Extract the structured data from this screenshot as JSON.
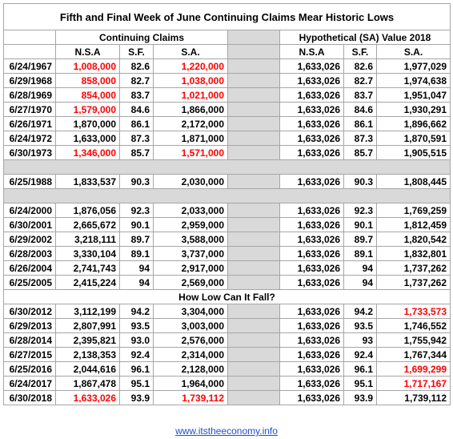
{
  "table": {
    "title": "Fifth and Final Week of June Continuing Claims Mear Historic Lows",
    "group_headers": [
      "Continuing Claims",
      "Hypothetical (SA) Value 2018"
    ],
    "column_headers": [
      "N.S.A",
      "S.F.",
      "S.A.",
      "N.S.A",
      "S.F.",
      "S.A."
    ],
    "groups": [
      {
        "rows": [
          [
            "6/24/1967",
            {
              "text": "1,008,000",
              "color": "#ff0000"
            },
            "82.6",
            {
              "text": "1,220,000",
              "color": "#ff0000"
            },
            "1,633,026",
            "82.6",
            "1,977,029"
          ],
          [
            "6/29/1968",
            {
              "text": "858,000",
              "color": "#ff0000"
            },
            "82.7",
            {
              "text": "1,038,000",
              "color": "#ff0000"
            },
            "1,633,026",
            "82.7",
            "1,974,638"
          ],
          [
            "6/28/1969",
            {
              "text": "854,000",
              "color": "#ff0000"
            },
            "83.7",
            {
              "text": "1,021,000",
              "color": "#ff0000"
            },
            "1,633,026",
            "83.7",
            "1,951,047"
          ],
          [
            "6/27/1970",
            {
              "text": "1,579,000",
              "color": "#ff0000"
            },
            "84.6",
            "1,866,000",
            "1,633,026",
            "84.6",
            "1,930,291"
          ],
          [
            "6/26/1971",
            "1,870,000",
            "86.1",
            "2,172,000",
            "1,633,026",
            "86.1",
            "1,896,662"
          ],
          [
            "6/24/1972",
            "1,633,000",
            "87.3",
            "1,871,000",
            "1,633,026",
            "87.3",
            "1,870,591"
          ],
          [
            "6/30/1973",
            {
              "text": "1,346,000",
              "color": "#ff0000"
            },
            "85.7",
            {
              "text": "1,571,000",
              "color": "#ff0000"
            },
            "1,633,026",
            "85.7",
            "1,905,515"
          ]
        ]
      },
      {
        "rows": [
          [
            "6/25/1988",
            "1,833,537",
            "90.3",
            "2,030,000",
            "1,633,026",
            "90.3",
            "1,808,445"
          ]
        ]
      },
      {
        "rows": [
          [
            "6/24/2000",
            "1,876,056",
            "92.3",
            "2,033,000",
            "1,633,026",
            "92.3",
            "1,769,259"
          ],
          [
            "6/30/2001",
            "2,665,672",
            "90.1",
            "2,959,000",
            "1,633,026",
            "90.1",
            "1,812,459"
          ],
          [
            "6/29/2002",
            "3,218,111",
            "89.7",
            "3,588,000",
            "1,633,026",
            "89.7",
            "1,820,542"
          ],
          [
            "6/28/2003",
            "3,330,104",
            "89.1",
            "3,737,000",
            "1,633,026",
            "89.1",
            "1,832,801"
          ],
          [
            "6/26/2004",
            "2,741,743",
            "94",
            "2,917,000",
            "1,633,026",
            "94",
            "1,737,262"
          ],
          [
            "6/25/2005",
            "2,415,224",
            "94",
            "2,569,000",
            "1,633,026",
            "94",
            "1,737,262"
          ]
        ]
      },
      {
        "heading": "How Low Can It Fall?",
        "rows": [
          [
            "6/30/2012",
            "3,112,199",
            "94.2",
            "3,304,000",
            "1,633,026",
            "94.2",
            {
              "text": "1,733,573",
              "color": "#ff0000"
            }
          ],
          [
            "6/29/2013",
            "2,807,991",
            "93.5",
            "3,003,000",
            "1,633,026",
            "93.5",
            "1,746,552"
          ],
          [
            "6/28/2014",
            "2,395,821",
            "93.0",
            "2,576,000",
            "1,633,026",
            "93",
            "1,755,942"
          ],
          [
            "6/27/2015",
            "2,138,353",
            "92.4",
            "2,314,000",
            "1,633,026",
            "92.4",
            "1,767,344"
          ],
          [
            "6/25/2016",
            "2,044,616",
            "96.1",
            "2,128,000",
            "1,633,026",
            "96.1",
            {
              "text": "1,699,299",
              "color": "#ff0000"
            }
          ],
          [
            "6/24/2017",
            "1,867,478",
            "95.1",
            "1,964,000",
            "1,633,026",
            "95.1",
            {
              "text": "1,717,167",
              "color": "#ff0000"
            }
          ],
          [
            "6/30/2018",
            {
              "text": "1,633,026",
              "color": "#ff0000"
            },
            "93.9",
            {
              "text": "1,739,112",
              "color": "#ff0000"
            },
            "1,633,026",
            "93.9",
            "1,739,112"
          ]
        ]
      }
    ],
    "footer": {
      "link": "www.itstheeconomy.info"
    }
  }
}
